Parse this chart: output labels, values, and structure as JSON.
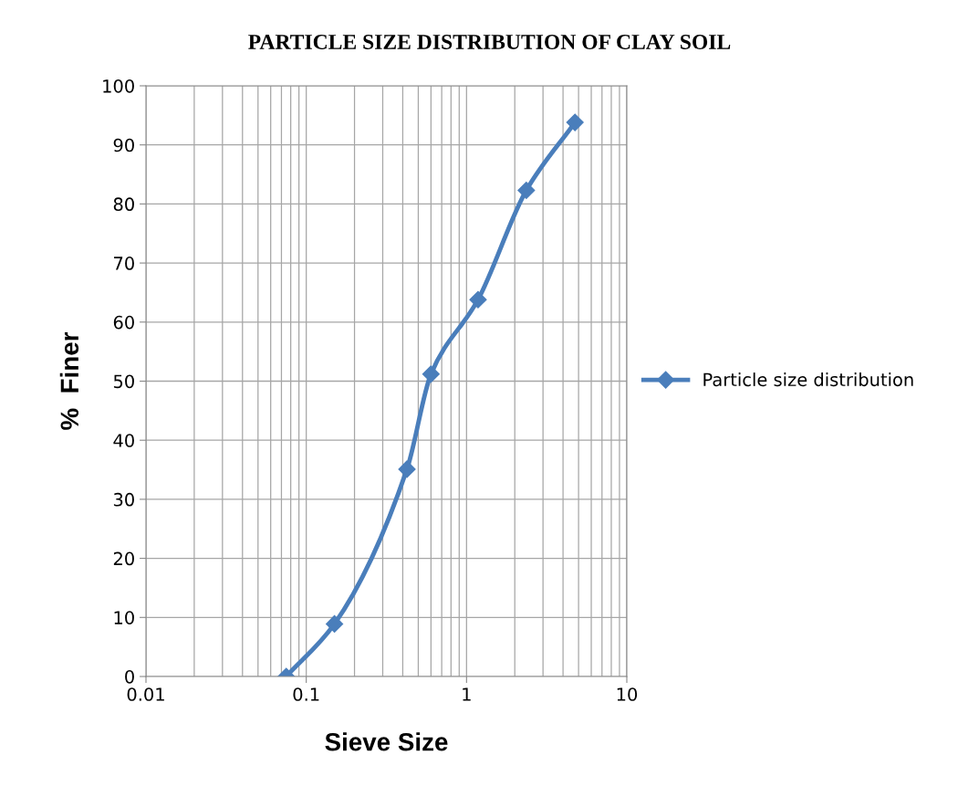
{
  "chart_data": {
    "type": "line",
    "title": "PARTICLE SIZE DISTRIBUTION OF CLAY SOIL",
    "xlabel": "Sieve Size",
    "ylabel": "%  Finer",
    "x": [
      0.075,
      0.15,
      0.425,
      0.6,
      1.18,
      2.36,
      4.75
    ],
    "series": [
      {
        "name": "Particle size distribution",
        "color": "#4a7ebb",
        "values": [
          0,
          8.9,
          35.1,
          51.2,
          63.8,
          82.3,
          93.8
        ]
      }
    ],
    "log": "x",
    "xlim": [
      0.01,
      10
    ],
    "xticks": [
      0.01,
      0.1,
      1,
      10
    ],
    "ylim": [
      0,
      100
    ],
    "yticks": [
      0,
      10,
      20,
      30,
      40,
      50,
      60,
      70,
      80,
      90,
      100
    ],
    "grid": true,
    "legend": "right",
    "marker": "diamond",
    "line_style": "solid"
  }
}
